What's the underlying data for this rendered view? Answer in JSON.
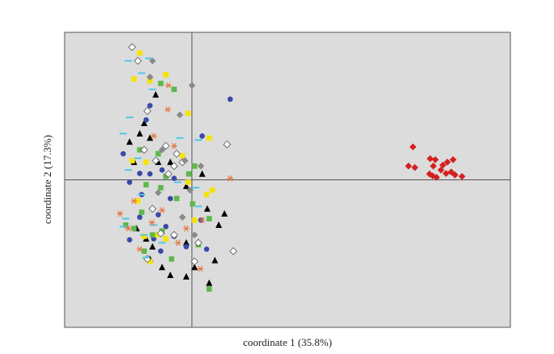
{
  "chart_data": {
    "type": "scatter",
    "x_label": "coordinate 1 (35.8%)",
    "y_label": "coordinate 2 (17.3%)",
    "xlim": [
      -0.2,
      0.5
    ],
    "ylim": [
      -0.3,
      0.3
    ],
    "zero_lines": true,
    "background": "#dcdcdc",
    "series": [
      {
        "marker": "triangle",
        "color": "#000000",
        "x": [
          -0.057,
          -0.075,
          -0.082,
          -0.066,
          -0.098,
          -0.091,
          -0.053,
          -0.034,
          0.016,
          -0.009,
          0.024,
          0.051,
          0.042,
          -0.072,
          -0.062,
          -0.009,
          0.036,
          0.004,
          -0.066,
          -0.047,
          -0.009,
          0.027,
          -0.034,
          -0.087
        ],
        "y": [
          0.173,
          0.115,
          0.094,
          0.085,
          0.077,
          0.036,
          0.036,
          0.036,
          0.012,
          -0.013,
          -0.059,
          -0.069,
          -0.092,
          -0.12,
          -0.136,
          -0.128,
          -0.164,
          -0.178,
          -0.161,
          -0.178,
          -0.197,
          -0.21,
          -0.194,
          -0.099
        ]
      },
      {
        "marker": "circle",
        "color": "#3a48a8",
        "x": [
          0.06,
          -0.066,
          -0.072,
          0.016,
          -0.108,
          -0.082,
          -0.066,
          -0.047,
          -0.028,
          -0.098,
          -0.079,
          -0.034,
          -0.053,
          0.014,
          -0.082,
          -0.041,
          -0.028,
          -0.098,
          -0.049,
          -0.009,
          0.023,
          -0.06
        ],
        "y": [
          0.164,
          0.151,
          0.122,
          0.089,
          0.053,
          0.013,
          0.012,
          0.02,
          0.003,
          -0.005,
          -0.03,
          -0.038,
          -0.071,
          -0.082,
          -0.076,
          -0.095,
          -0.115,
          -0.122,
          -0.145,
          -0.136,
          -0.141,
          -0.12
        ]
      },
      {
        "marker": "square",
        "color": "#f5e400",
        "x": [
          -0.082,
          -0.091,
          -0.066,
          -0.041,
          -0.006,
          0.027,
          -0.094,
          -0.072,
          -0.015,
          -0.006,
          0.032,
          0.023,
          -0.085,
          0.004,
          -0.075,
          -0.041,
          -0.056,
          -0.066
        ],
        "y": [
          0.258,
          0.205,
          0.201,
          0.214,
          0.135,
          0.085,
          0.039,
          0.036,
          0.049,
          -0.005,
          -0.021,
          -0.03,
          -0.043,
          -0.082,
          -0.115,
          -0.12,
          -0.112,
          -0.166
        ]
      },
      {
        "marker": "square",
        "color": "#5cb84a",
        "x": [
          -0.049,
          -0.028,
          -0.082,
          -0.053,
          0.004,
          -0.005,
          -0.041,
          -0.072,
          -0.049,
          -0.024,
          -0.079,
          0.001,
          0.027,
          -0.091,
          -0.047,
          -0.075,
          0.01,
          -0.032,
          0.027,
          -0.062,
          -0.104
        ],
        "y": [
          0.196,
          0.184,
          0.061,
          0.053,
          0.028,
          0.012,
          0.007,
          -0.01,
          -0.016,
          -0.038,
          -0.066,
          -0.049,
          -0.079,
          -0.099,
          -0.104,
          -0.145,
          -0.132,
          -0.161,
          -0.222,
          -0.112,
          -0.092
        ]
      },
      {
        "marker": "diamond",
        "color": "#ffffff",
        "x": [
          -0.094,
          -0.085,
          -0.07,
          0.055,
          -0.075,
          -0.041,
          -0.024,
          -0.057,
          -0.028,
          -0.015,
          -0.037,
          -0.062,
          -0.049,
          -0.028,
          0.01,
          0.065,
          0.004,
          -0.07
        ],
        "y": [
          0.27,
          0.242,
          0.14,
          0.072,
          0.061,
          0.069,
          0.053,
          0.039,
          0.028,
          0.036,
          0.012,
          -0.059,
          -0.109,
          -0.112,
          -0.128,
          -0.145,
          -0.166,
          -0.161
        ]
      },
      {
        "marker": "diamond",
        "color": "#8a8a8a",
        "x": [
          -0.062,
          -0.066,
          0,
          -0.019,
          -0.011,
          0.014,
          -0.003,
          -0.053,
          0.004,
          -0.015,
          -0.047
        ],
        "y": [
          0.242,
          0.209,
          0.192,
          0.132,
          0.039,
          0.028,
          -0.021,
          -0.026,
          -0.112,
          -0.076,
          0.061
        ]
      },
      {
        "marker": "dash",
        "color": "#4ec8e8",
        "x": [
          -0.1,
          -0.068,
          -0.079,
          -0.062,
          -0.098,
          -0.108,
          -0.019,
          0.01,
          -0.085,
          -0.1,
          0.006,
          -0.022,
          -0.079,
          0.01,
          -0.104,
          -0.06,
          -0.075,
          -0.047,
          -0.108,
          -0.072
        ],
        "y": [
          0.242,
          0.247,
          0.217,
          0.184,
          0.127,
          0.094,
          0.085,
          0.081,
          0.044,
          0.02,
          -0.016,
          -0.005,
          -0.03,
          -0.054,
          -0.079,
          -0.092,
          -0.112,
          -0.128,
          -0.095,
          -0.158
        ]
      },
      {
        "marker": "asterisk",
        "color": "#e8703a",
        "x": [
          -0.037,
          -0.038,
          -0.06,
          -0.028,
          0.06,
          -0.091,
          -0.113,
          -0.063,
          0.016,
          -0.1,
          -0.009,
          -0.022,
          0.013,
          -0.082,
          -0.047
        ],
        "y": [
          0.192,
          0.143,
          0.089,
          0.069,
          0.003,
          -0.043,
          -0.069,
          -0.087,
          -0.082,
          -0.099,
          -0.099,
          -0.128,
          -0.181,
          -0.141,
          -0.062
        ]
      },
      {
        "marker": "diamond",
        "color": "#d42020",
        "x": [
          0.347,
          0.34,
          0.35,
          0.374,
          0.382,
          0.379,
          0.394,
          0.401,
          0.41,
          0.391,
          0.399,
          0.378,
          0.384,
          0.407,
          0.413,
          0.424,
          0.373
        ],
        "y": [
          0.067,
          0.028,
          0.025,
          0.043,
          0.041,
          0.028,
          0.03,
          0.036,
          0.041,
          0.02,
          0.013,
          0.008,
          0.005,
          0.016,
          0.01,
          0.007,
          0.012
        ]
      }
    ]
  }
}
